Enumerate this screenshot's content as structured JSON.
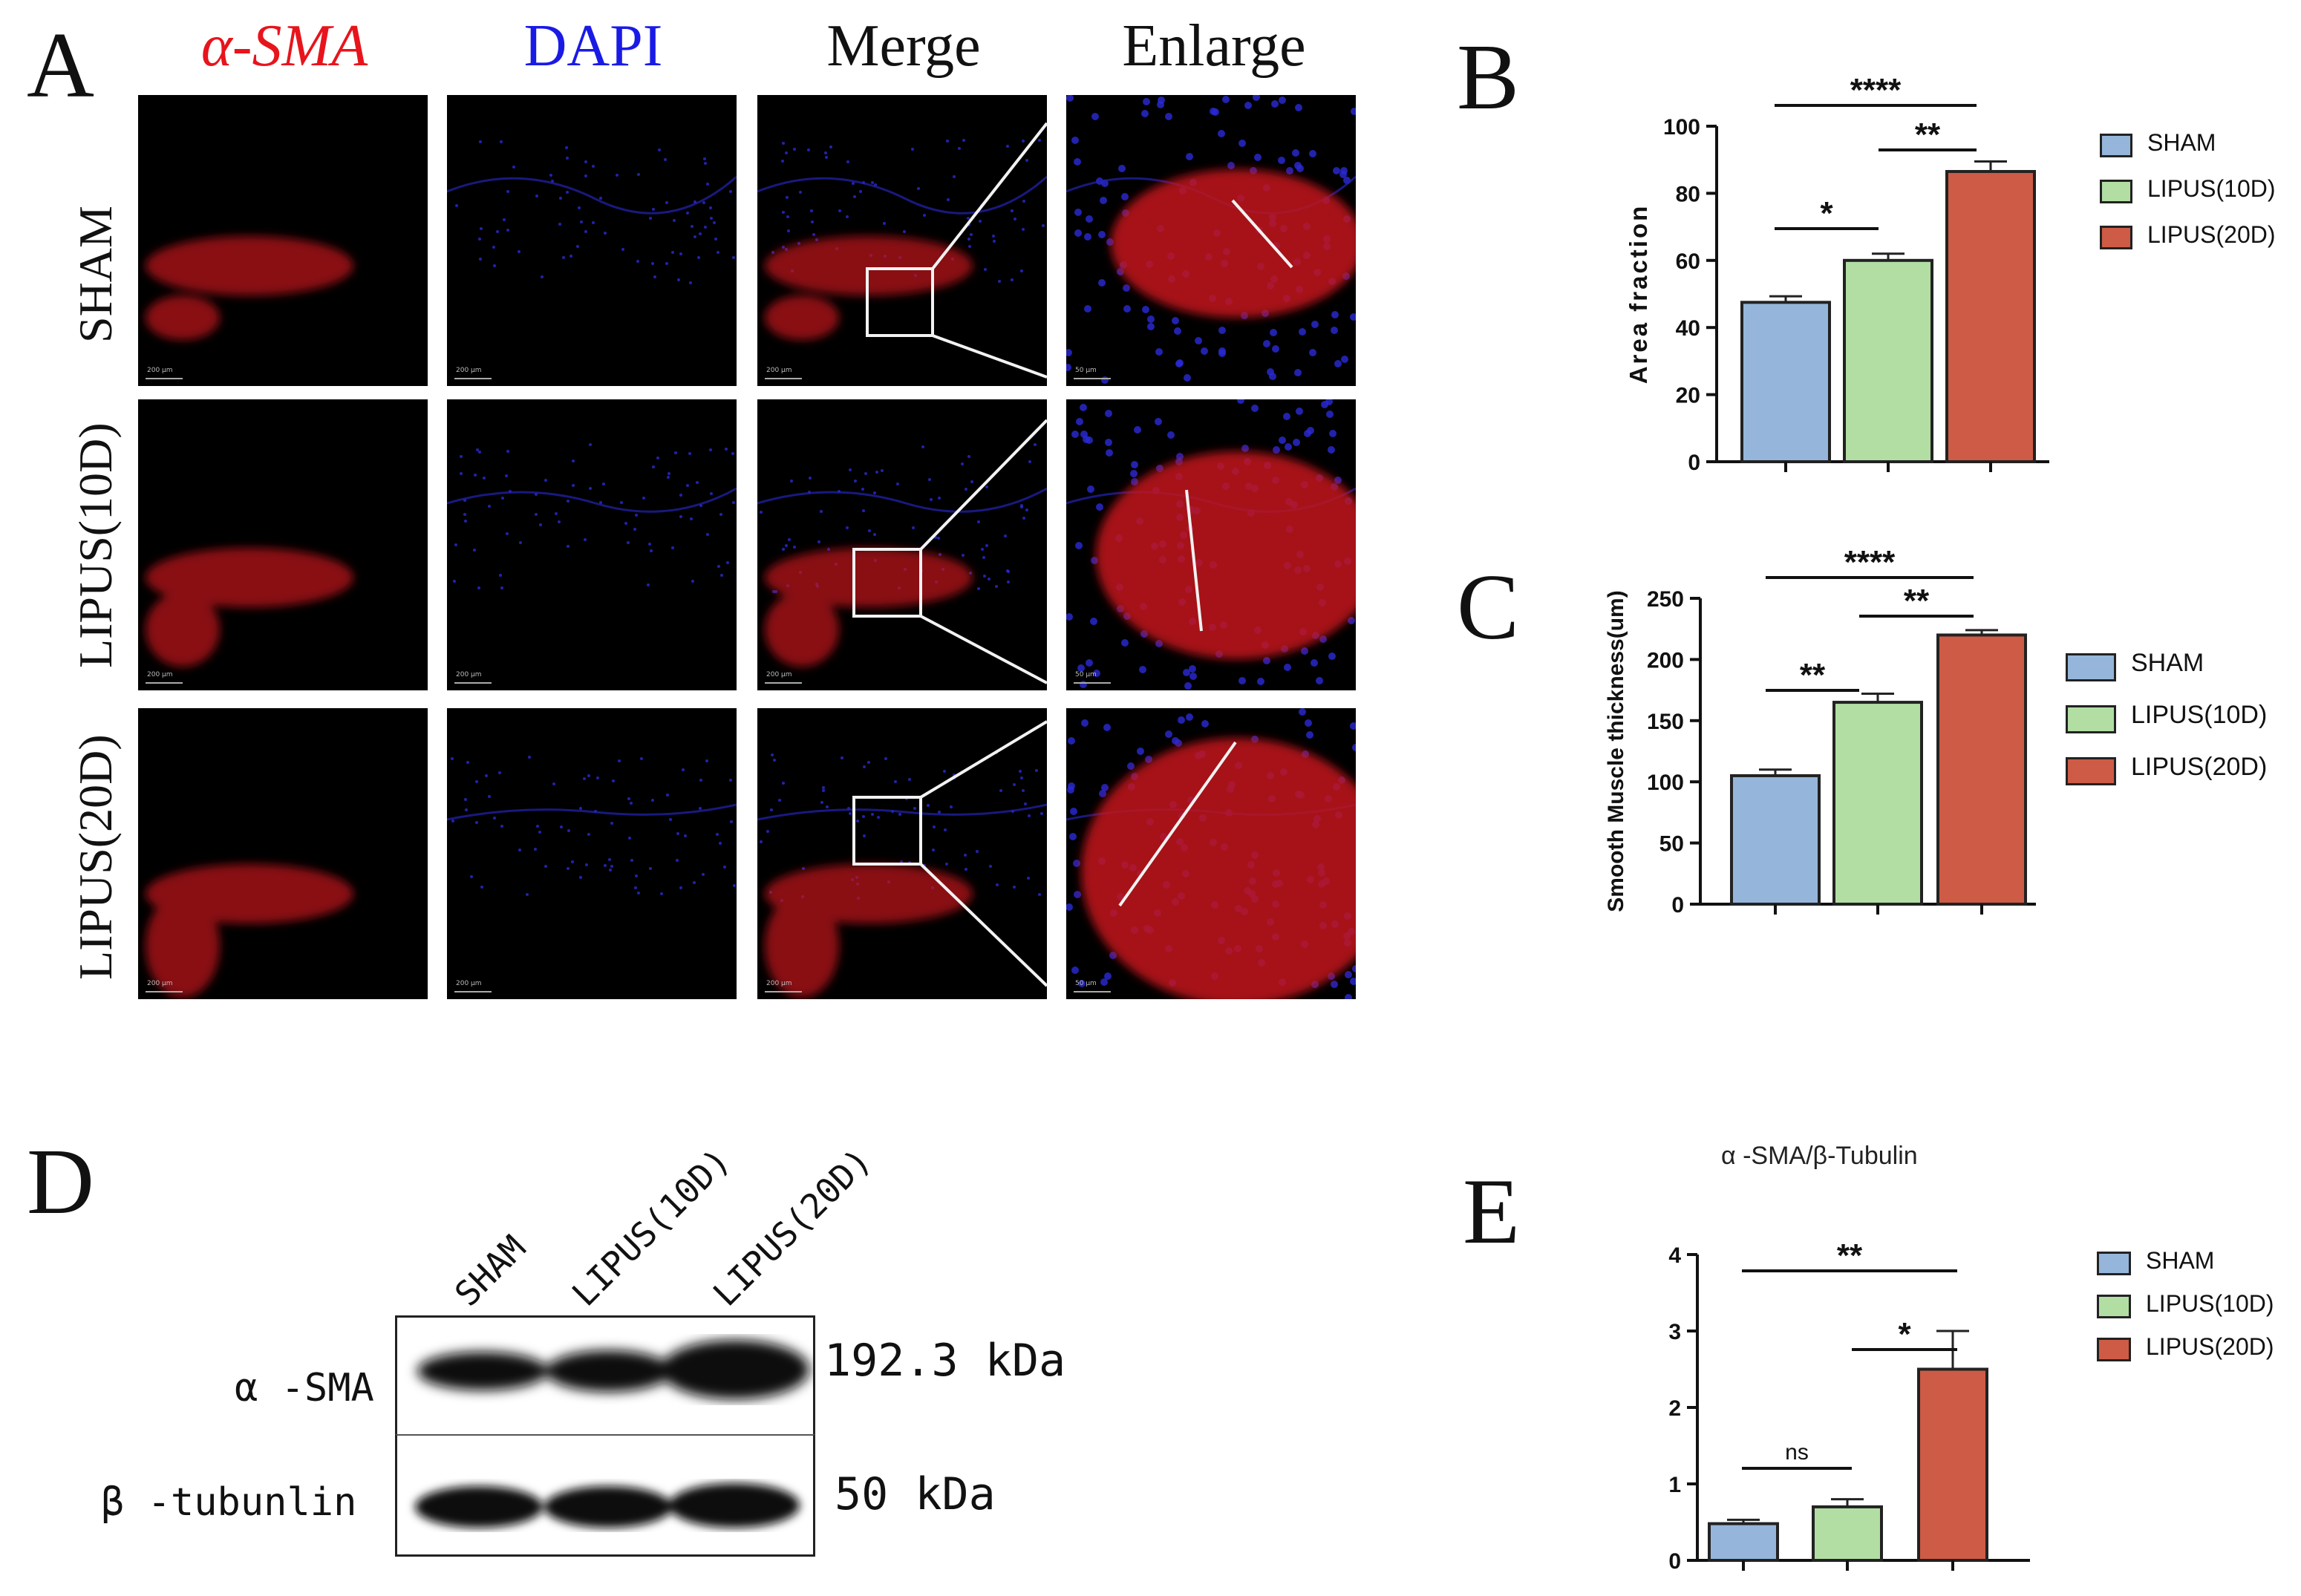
{
  "panelA": {
    "letter": "A",
    "columns": [
      {
        "label": "α-SMA",
        "color": "#e8141c"
      },
      {
        "label": "DAPI",
        "color": "#1a1ae6"
      },
      {
        "label": "Merge",
        "color": "#111111"
      },
      {
        "label": "Enlarge",
        "color": "#111111"
      }
    ],
    "rows": [
      "SHAM",
      "LIPUS(10D)",
      "LIPUS(20D)"
    ],
    "scale_low": "200 μm",
    "scale_high": "50 μm"
  },
  "panelD": {
    "letter": "D",
    "lanes": [
      "SHAM",
      "LIPUS(10D)",
      "LIPUS(20D)"
    ],
    "bands": [
      {
        "name": "α -SMA",
        "size": "192.3 kDa"
      },
      {
        "name": "β -tubunlin",
        "size": "50 kDa"
      }
    ]
  },
  "legend": [
    "SHAM",
    "LIPUS(10D)",
    "LIPUS(20D)"
  ],
  "colors": {
    "sham": "#95b6da",
    "lipus10": "#b2dea4",
    "lipus20": "#cd5b45"
  },
  "chart_data": [
    {
      "id": "B",
      "type": "bar",
      "letter": "B",
      "title": "",
      "xlabel": "",
      "ylabel": "Area fraction",
      "categories": [
        "SHAM",
        "LIPUS(10D)",
        "LIPUS(20D)"
      ],
      "values": [
        47.5,
        60.0,
        86.5
      ],
      "errors": [
        1.8,
        2.0,
        3.0
      ],
      "ylim": [
        0,
        100
      ],
      "yticks": [
        0,
        20,
        40,
        60,
        80,
        100
      ],
      "significance": [
        {
          "from": 0,
          "to": 2,
          "label": "****"
        },
        {
          "from": 1,
          "to": 2,
          "label": "**"
        },
        {
          "from": 0,
          "to": 1,
          "label": "*"
        }
      ],
      "legend": "right"
    },
    {
      "id": "C",
      "type": "bar",
      "letter": "C",
      "title": "",
      "xlabel": "",
      "ylabel": "Smooth Muscle thickness(um)",
      "categories": [
        "SHAM",
        "LIPUS(10D)",
        "LIPUS(20D)"
      ],
      "values": [
        105,
        165,
        220
      ],
      "errors": [
        5,
        7,
        4
      ],
      "ylim": [
        0,
        250
      ],
      "yticks": [
        0,
        50,
        100,
        150,
        200,
        250
      ],
      "significance": [
        {
          "from": 0,
          "to": 2,
          "label": "****"
        },
        {
          "from": 1,
          "to": 2,
          "label": "**"
        },
        {
          "from": 0,
          "to": 1,
          "label": "**"
        }
      ],
      "legend": "right"
    },
    {
      "id": "E",
      "type": "bar",
      "letter": "E",
      "title": "α -SMA/β-Tubulin",
      "xlabel": "",
      "ylabel": "",
      "categories": [
        "SHAM",
        "LIPUS(10D)",
        "LIPUS(20D)"
      ],
      "values": [
        0.48,
        0.7,
        2.5
      ],
      "errors": [
        0.05,
        0.1,
        0.5
      ],
      "ylim": [
        0,
        4
      ],
      "yticks": [
        0,
        1,
        2,
        3,
        4
      ],
      "significance": [
        {
          "from": 0,
          "to": 2,
          "label": "**"
        },
        {
          "from": 1,
          "to": 2,
          "label": "*"
        },
        {
          "from": 0,
          "to": 1,
          "label": "ns"
        }
      ],
      "legend": "right"
    }
  ]
}
